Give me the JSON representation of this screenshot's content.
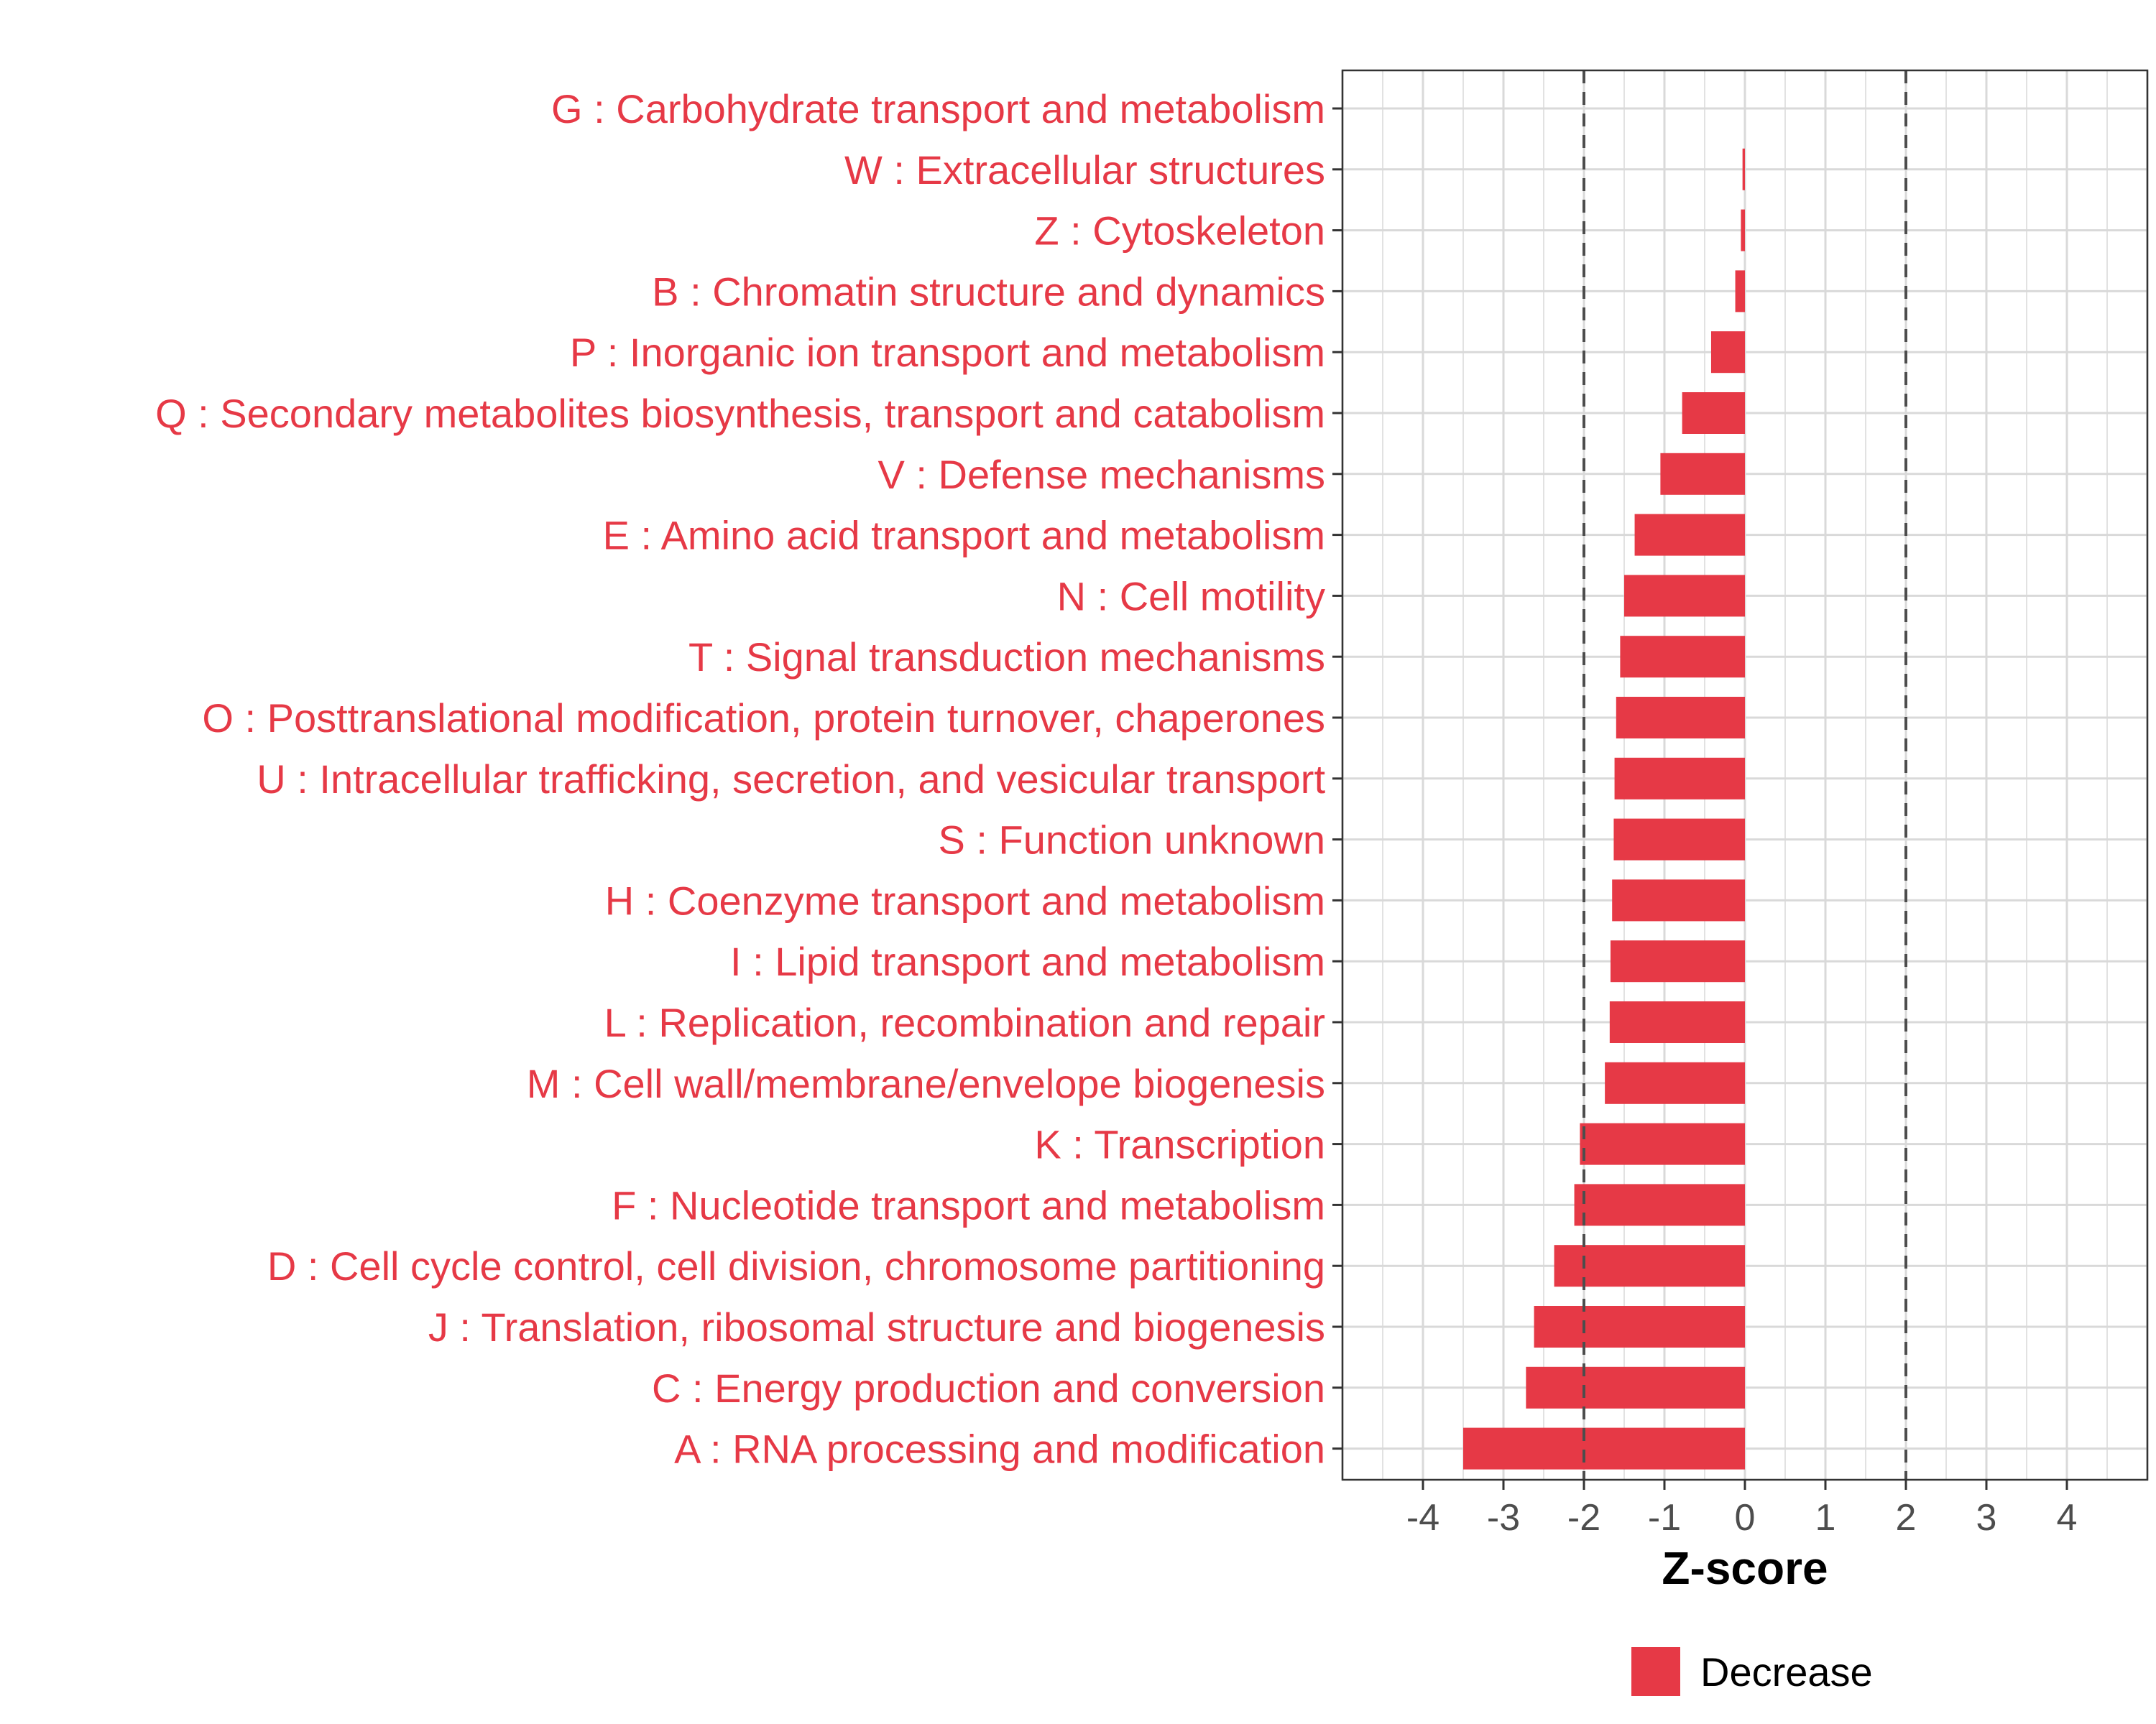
{
  "chart_data": {
    "type": "bar",
    "orientation": "horizontal",
    "title": "",
    "xlabel": "Z-score",
    "ylabel": "",
    "xlim": [
      -5,
      5
    ],
    "xticks": [
      -4,
      -3,
      -2,
      -1,
      0,
      1,
      2,
      3,
      4
    ],
    "xtick_labels": [
      "-4",
      "-3",
      "-2",
      "-1",
      "0",
      "1",
      "2",
      "3",
      "4"
    ],
    "threshold_lines": [
      -2,
      2
    ],
    "grid": true,
    "categories": [
      "G : Carbohydrate transport and metabolism",
      "W : Extracellular structures",
      "Z : Cytoskeleton",
      "B : Chromatin structure and dynamics",
      "P : Inorganic ion transport and metabolism",
      "Q : Secondary metabolites biosynthesis, transport and catabolism",
      "V : Defense mechanisms",
      "E : Amino acid transport and metabolism",
      "N : Cell motility",
      "T : Signal transduction mechanisms",
      "O : Posttranslational modification, protein turnover, chaperones",
      "U : Intracellular trafficking, secretion, and vesicular transport",
      "S : Function unknown",
      "H : Coenzyme transport and metabolism",
      "I : Lipid transport and metabolism",
      "L : Replication, recombination and repair",
      "M : Cell wall/membrane/envelope biogenesis",
      "K : Transcription",
      "F : Nucleotide transport and metabolism",
      "D : Cell cycle control, cell division, chromosome partitioning",
      "J : Translation, ribosomal structure and biogenesis",
      "C : Energy production and conversion",
      "A : RNA processing and modification"
    ],
    "values": [
      0,
      -0.03,
      -0.05,
      -0.12,
      -0.42,
      -0.78,
      -1.05,
      -1.37,
      -1.5,
      -1.55,
      -1.6,
      -1.62,
      -1.63,
      -1.65,
      -1.67,
      -1.68,
      -1.74,
      -2.05,
      -2.12,
      -2.37,
      -2.62,
      -2.72,
      -3.5
    ],
    "legend": {
      "position": "bottom",
      "entries": [
        {
          "label": "Decrease",
          "color": "#e63946"
        }
      ]
    },
    "colors": {
      "bar": "#e63946",
      "label": "#e63946",
      "grid": "#d9d9d9",
      "panel_border": "#333333",
      "threshold": "#4d4d4d"
    }
  }
}
